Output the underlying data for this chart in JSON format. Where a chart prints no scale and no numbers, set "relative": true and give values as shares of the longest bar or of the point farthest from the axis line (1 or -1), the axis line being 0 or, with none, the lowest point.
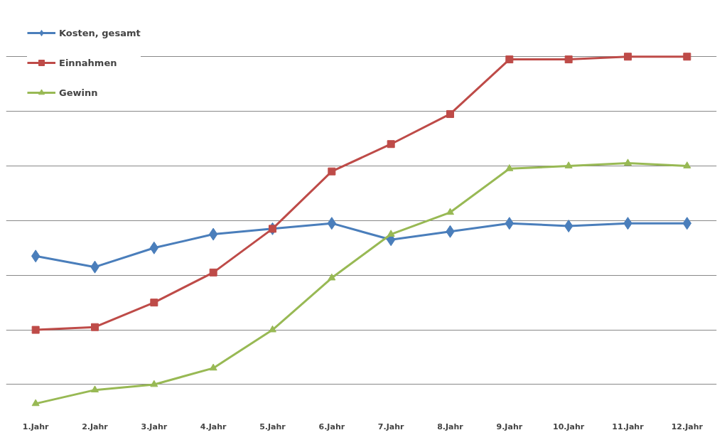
{
  "chart_data": {
    "type": "line",
    "relative": true,
    "grid": "y",
    "legend": "top left",
    "categories": [
      "1.Jahr",
      "2.Jahr",
      "3.Jahr",
      "4.Jahr",
      "5.Jahr",
      "6.Jahr",
      "7.Jahr",
      "8.Jahr",
      "9.Jahr",
      "10.Jahr",
      "11.Jahr",
      "12.Jahr"
    ],
    "series": [
      {
        "name": "Kosten, gesamt",
        "color": "#4a7ebb",
        "marker": "diamond",
        "values": [
          0.27,
          0.23,
          0.3,
          0.35,
          0.37,
          0.39,
          0.33,
          0.36,
          0.39,
          0.38,
          0.39,
          0.39
        ]
      },
      {
        "name": "Einnahmen",
        "color": "#be4b48",
        "marker": "square",
        "values": [
          0.0,
          0.01,
          0.1,
          0.21,
          0.37,
          0.58,
          0.68,
          0.79,
          0.99,
          0.99,
          1.0,
          1.0
        ]
      },
      {
        "name": "Gewinn",
        "color": "#98b954",
        "marker": "triangle",
        "values": [
          -0.27,
          -0.22,
          -0.2,
          -0.14,
          0.0,
          0.19,
          0.35,
          0.43,
          0.59,
          0.6,
          0.61,
          0.6
        ]
      }
    ]
  }
}
